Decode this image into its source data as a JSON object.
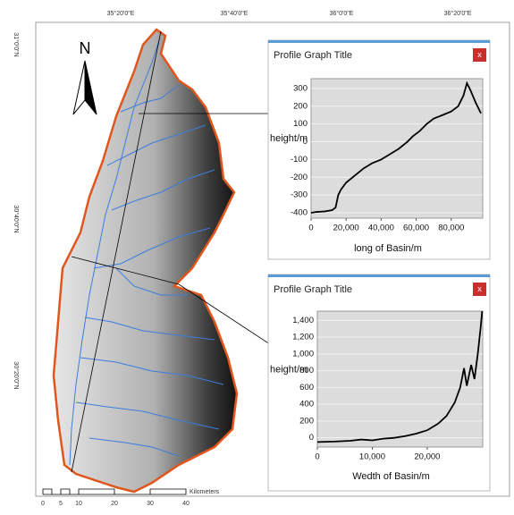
{
  "map": {
    "top_labels": [
      "35°20'0\"E",
      "35°40'0\"E",
      "36°0'0\"E",
      "36°20'0\"E"
    ],
    "left_labels": [
      "31°0'0\"N",
      "30°40'0\"N",
      "30°20'0\"N"
    ],
    "north": "N",
    "scale_labels": [
      "0",
      "5",
      "10",
      "20",
      "30",
      "40"
    ],
    "scale_unit": "Kilometers"
  },
  "chart_data": [
    {
      "type": "line",
      "title": "Profile Graph Title",
      "close_label": "x",
      "ylabel": "height/m",
      "xlabel": "long of Basin/m",
      "color": "#000000",
      "grid": true,
      "x": [
        0,
        3000,
        8000,
        12000,
        14000,
        15500,
        17000,
        20000,
        25000,
        30000,
        35000,
        40000,
        45000,
        50000,
        55000,
        58000,
        62000,
        66000,
        70000,
        75000,
        80000,
        84000,
        87000,
        89000,
        91000,
        94000,
        97000
      ],
      "values": [
        -400,
        -395,
        -392,
        -385,
        -370,
        -300,
        -270,
        -230,
        -190,
        -150,
        -120,
        -100,
        -70,
        -40,
        0,
        30,
        60,
        100,
        130,
        150,
        170,
        200,
        260,
        330,
        290,
        220,
        160
      ],
      "xlim": [
        0,
        98000
      ],
      "ylim": [
        -430,
        355
      ],
      "xticks": [
        0,
        {
          "value": 20000,
          "label": "20,000"
        },
        {
          "value": 40000,
          "label": "40,000"
        },
        {
          "value": 60000,
          "label": "60,000"
        },
        {
          "value": 80000,
          "label": "80,000"
        }
      ],
      "yticks": [
        -400,
        -300,
        -200,
        -100,
        0,
        100,
        200,
        300
      ]
    },
    {
      "type": "line",
      "title": "Profile Graph Title",
      "close_label": "x",
      "ylabel": "height/m",
      "xlabel": "Wedth of Basin/m",
      "color": "#000000",
      "grid": true,
      "x": [
        0,
        3000,
        6000,
        8000,
        10000,
        12000,
        14000,
        16000,
        18000,
        20000,
        22000,
        23500,
        25000,
        26000,
        26700,
        27200,
        28000,
        28600,
        29200,
        29700,
        30000
      ],
      "values": [
        -50,
        -45,
        -35,
        -20,
        -30,
        -10,
        0,
        20,
        50,
        90,
        170,
        260,
        420,
        600,
        830,
        620,
        870,
        700,
        1000,
        1300,
        1510
      ],
      "xlim": [
        0,
        30100
      ],
      "ylim": [
        -110,
        1510
      ],
      "xticks": [
        0,
        {
          "value": 10000,
          "label": "10,000"
        },
        {
          "value": 20000,
          "label": "20,000"
        }
      ],
      "yticks": [
        0,
        200,
        400,
        600,
        800,
        {
          "value": 1000,
          "label": "1,000"
        },
        {
          "value": 1200,
          "label": "1,200"
        },
        {
          "value": 1400,
          "label": "1,400"
        }
      ]
    }
  ]
}
